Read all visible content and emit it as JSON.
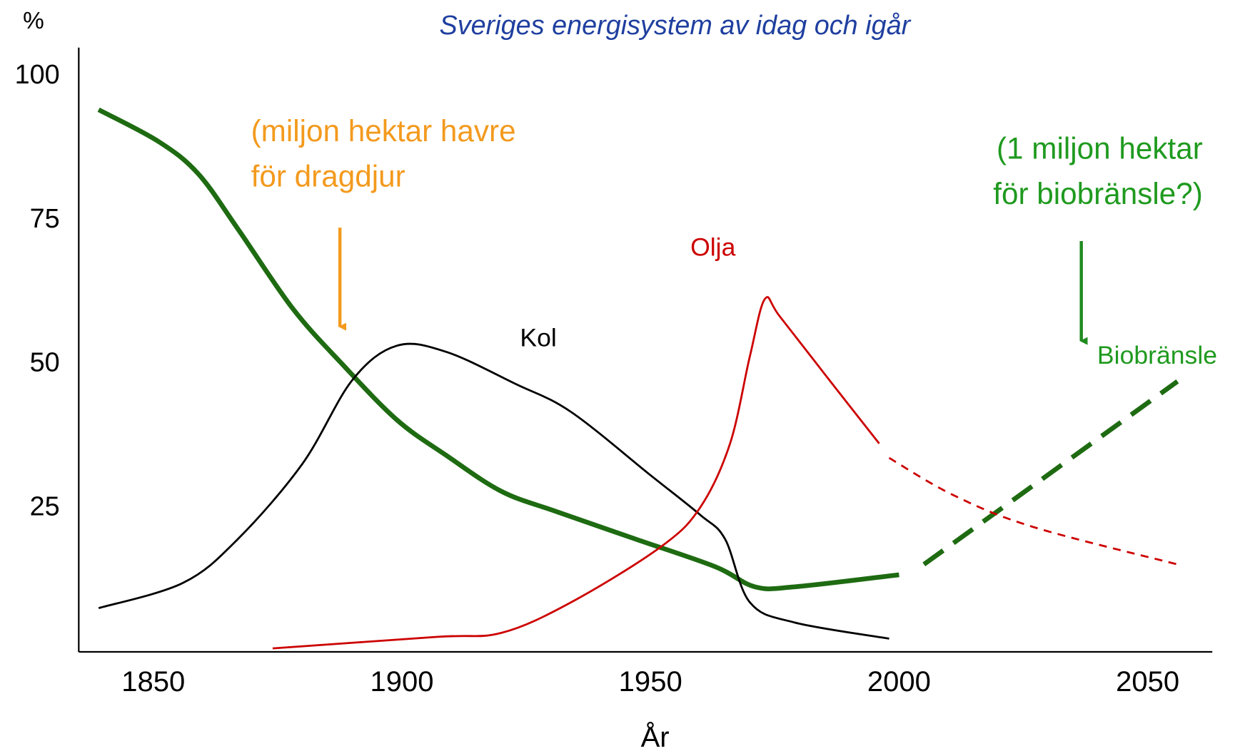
{
  "chart_data": {
    "type": "line",
    "subtitle": "Sveriges energisystem av idag och igår",
    "y_label": "%",
    "x_label": "År",
    "xlim": [
      1835,
      2063
    ],
    "ylim": [
      0,
      105
    ],
    "xticks": [
      1850,
      1900,
      1950,
      2000,
      2050
    ],
    "yticks": [
      25,
      50,
      75,
      100
    ],
    "grid": false,
    "series": [
      {
        "name": "Biobränsle",
        "color": "#1e6b12",
        "style": "solid",
        "width": 6,
        "x": [
          1839,
          1851,
          1859,
          1867,
          1878,
          1888,
          1899,
          1909,
          1920,
          1931,
          1947,
          1963,
          1971,
          1979,
          2000
        ],
        "values": [
          94.2,
          88.7,
          83.1,
          73.5,
          59.7,
          50,
          40.3,
          34.1,
          27.9,
          24.4,
          19.6,
          14.8,
          11.3,
          11.3,
          13.4
        ]
      },
      {
        "color": "#1e6b12",
        "style": "dashed",
        "width": 6,
        "x": [
          2005,
          2056
        ],
        "values": [
          15.2,
          47
        ]
      },
      {
        "name": "Kol",
        "color": "#000000",
        "style": "solid",
        "width": 2.5,
        "x": [
          1839,
          1856,
          1867,
          1880,
          1890,
          1899,
          1909,
          1923,
          1934,
          1950,
          1960,
          1965,
          1970,
          1979,
          1998
        ],
        "values": [
          7.6,
          12,
          19.6,
          32.7,
          47.2,
          53.2,
          52.1,
          46.5,
          41.7,
          30.7,
          23.8,
          19.6,
          8.6,
          5.1,
          2.3
        ]
      },
      {
        "name": "Olja",
        "color": "#cc0000",
        "style": "solid",
        "width": 2.5,
        "x": [
          1874,
          1907,
          1920,
          1934,
          1952,
          1960,
          1966,
          1970,
          1973,
          1976,
          1986,
          1996
        ],
        "values": [
          0.6,
          2.6,
          3.3,
          8.6,
          18.2,
          25.1,
          36.2,
          51.4,
          61.3,
          58.3,
          47.2,
          36.2
        ]
      },
      {
        "color": "#cc0000",
        "style": "dashed",
        "width": 2.5,
        "x": [
          1998,
          2011,
          2027,
          2056
        ],
        "values": [
          33.7,
          27.2,
          21.7,
          15.2
        ]
      }
    ],
    "annotations": [
      {
        "lines": [
          "(miljon hektar havre",
          "för dragdjur"
        ],
        "color": "#f39a1e"
      },
      {
        "lines": [
          "(1 miljon hektar",
          "för biobränsle?)"
        ],
        "color": "#1f9a1f"
      }
    ]
  }
}
